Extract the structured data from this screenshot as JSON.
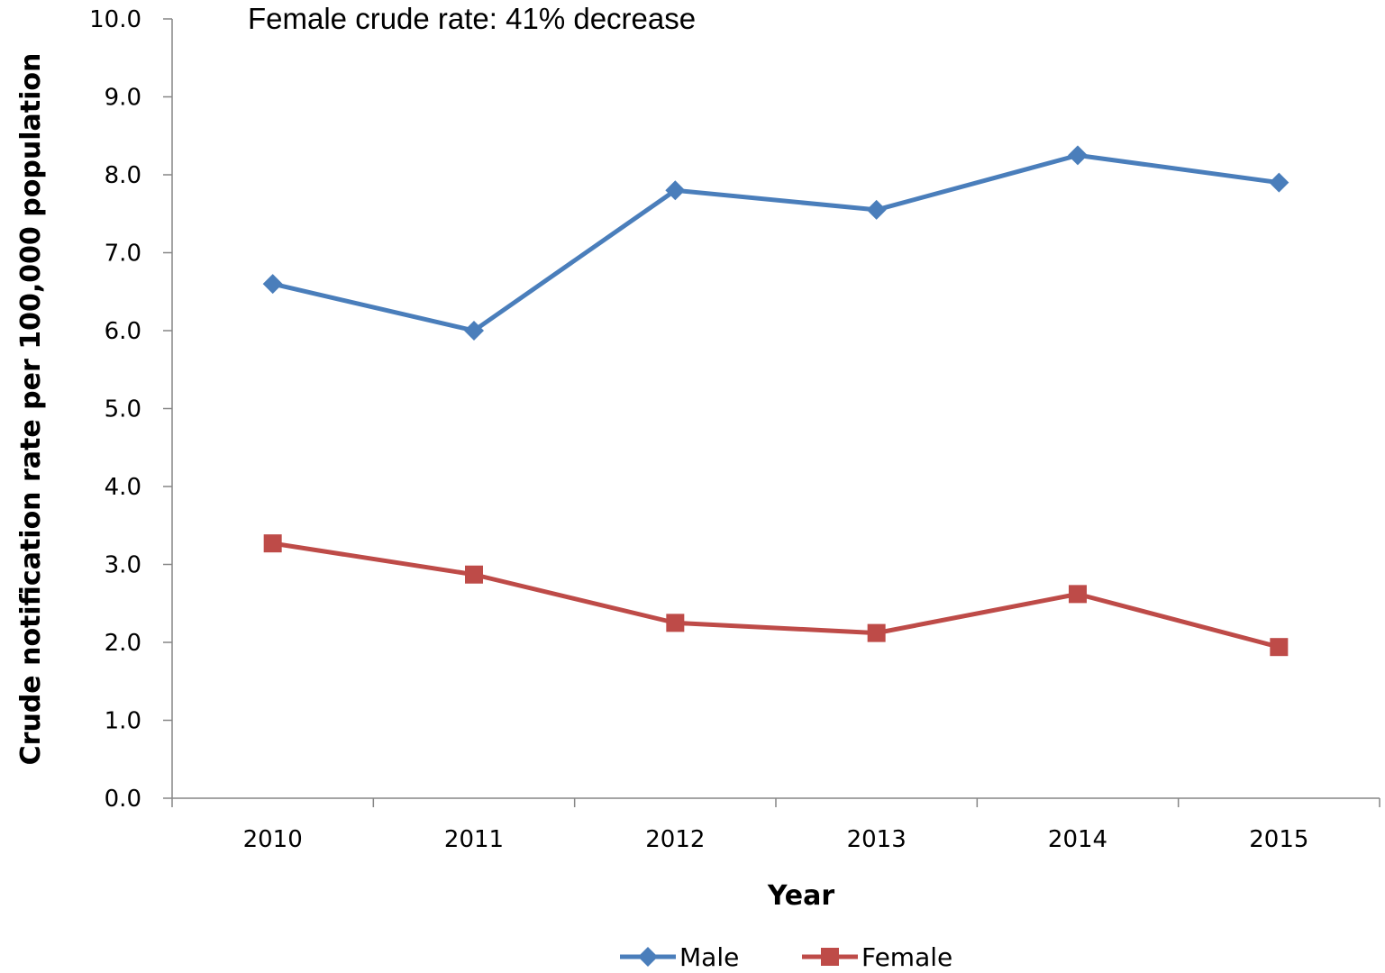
{
  "chart_data": {
    "type": "line",
    "title": "",
    "annotation": "Female crude rate: 41% decrease",
    "xlabel": "Year",
    "ylabel": "Crude notification rate per 100,000 population",
    "categories": [
      "2010",
      "2011",
      "2012",
      "2013",
      "2014",
      "2015"
    ],
    "ylim": [
      0,
      10
    ],
    "yticks": [
      "0.0",
      "1.0",
      "2.0",
      "3.0",
      "4.0",
      "5.0",
      "6.0",
      "7.0",
      "8.0",
      "9.0",
      "10.0"
    ],
    "grid": false,
    "legend_position": "bottom",
    "series": [
      {
        "name": "Male",
        "values": [
          6.6,
          6.0,
          7.8,
          7.55,
          8.25,
          7.9
        ],
        "color": "#4a7ebb",
        "marker": "diamond"
      },
      {
        "name": "Female",
        "values": [
          3.27,
          2.87,
          2.25,
          2.12,
          2.62,
          1.94
        ],
        "color": "#be4b48",
        "marker": "square"
      }
    ]
  }
}
